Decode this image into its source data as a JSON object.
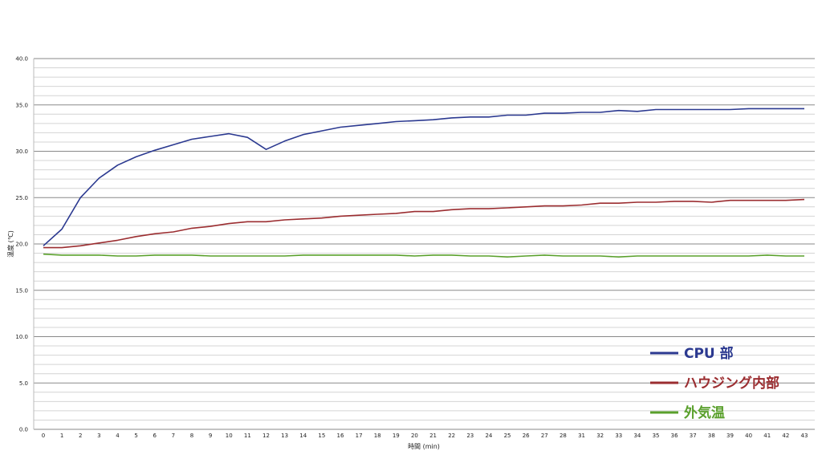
{
  "chart_data": {
    "type": "line",
    "title": "",
    "xlabel": "時間 (min)",
    "ylabel": "温度 (℃)",
    "ylim": [
      0,
      40
    ],
    "yticks": [
      "0.0",
      "5.0",
      "10.0",
      "15.0",
      "20.0",
      "25.0",
      "30.0",
      "35.0",
      "40.0"
    ],
    "grid": true,
    "legend_position": "bottom-right",
    "categories": [
      "0",
      "1",
      "2",
      "3",
      "4",
      "5",
      "6",
      "7",
      "8",
      "9",
      "10",
      "11",
      "12",
      "13",
      "14",
      "15",
      "16",
      "17",
      "18",
      "19",
      "20",
      "21",
      "22",
      "23",
      "24",
      "25",
      "26",
      "27",
      "28",
      "31",
      "32",
      "33",
      "34",
      "35",
      "36",
      "37",
      "38",
      "39",
      "40",
      "41",
      "42",
      "43"
    ],
    "series": [
      {
        "name": "CPU 部",
        "color": "#2b3990",
        "values": [
          19.8,
          21.6,
          25.0,
          27.1,
          28.5,
          29.4,
          30.1,
          30.7,
          31.3,
          31.6,
          31.9,
          31.5,
          30.2,
          31.1,
          31.8,
          32.2,
          32.6,
          32.8,
          33.0,
          33.2,
          33.3,
          33.4,
          33.6,
          33.7,
          33.7,
          33.9,
          33.9,
          34.1,
          34.1,
          34.2,
          34.2,
          34.4,
          34.3,
          34.5,
          34.5,
          34.5,
          34.5,
          34.5,
          34.6,
          34.6,
          34.6,
          34.6
        ]
      },
      {
        "name": "ハウジング内部",
        "color": "#9b2d30",
        "values": [
          19.6,
          19.6,
          19.8,
          20.1,
          20.4,
          20.8,
          21.1,
          21.3,
          21.7,
          21.9,
          22.2,
          22.4,
          22.4,
          22.6,
          22.7,
          22.8,
          23.0,
          23.1,
          23.2,
          23.3,
          23.5,
          23.5,
          23.7,
          23.8,
          23.8,
          23.9,
          24.0,
          24.1,
          24.1,
          24.2,
          24.4,
          24.4,
          24.5,
          24.5,
          24.6,
          24.6,
          24.5,
          24.7,
          24.7,
          24.7,
          24.7,
          24.8
        ]
      },
      {
        "name": "外気温",
        "color": "#5aa02c",
        "values": [
          18.9,
          18.8,
          18.8,
          18.8,
          18.7,
          18.7,
          18.8,
          18.8,
          18.8,
          18.7,
          18.7,
          18.7,
          18.7,
          18.7,
          18.8,
          18.8,
          18.8,
          18.8,
          18.8,
          18.8,
          18.7,
          18.8,
          18.8,
          18.7,
          18.7,
          18.6,
          18.7,
          18.8,
          18.7,
          18.7,
          18.7,
          18.6,
          18.7,
          18.7,
          18.7,
          18.7,
          18.7,
          18.7,
          18.7,
          18.8,
          18.7,
          18.7
        ]
      }
    ]
  }
}
